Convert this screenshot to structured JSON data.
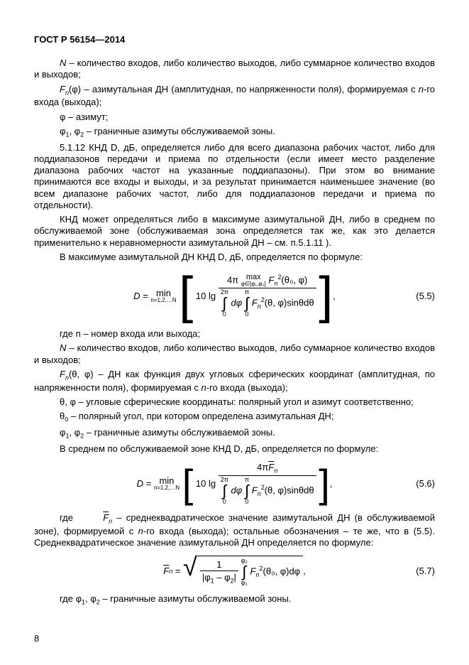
{
  "doc_header": "ГОСТ Р 56154—2014",
  "p1a": "N",
  "p1b": " – количество входов, либо количество выходов, либо суммарное количество входов и выходов;",
  "p2a": "F",
  "p2a_sub": "n",
  "p2a_arg": "(φ)",
  "p2b": " – азимутальная ДН (амплитудная, по напряженности поля), формируемая с  ",
  "p2c": "n",
  "p2d": "-го входа (выхода);",
  "p3a": "φ  – азимут;",
  "p4a": "φ",
  "p4a1": "1",
  "p4b": ", φ",
  "p4b1": "2",
  "p4c": "  – граничные азимуты обслуживаемой зоны.",
  "p5": "5.1.12 КНД  D, дБ,  определяется либо для всего диапазона рабочих частот, либо для поддиапазонов передачи и приема по отдельности (если имеет место разделение диапазона рабочих частот на указанные поддиапазоны). При этом во внимание принимаются все входы и выходы, и за результат принимается наименьшее значение (во всем диапазоне рабочих частот, либо для поддиапазонов передачи и приема по отдельности).",
  "p6": "КНД может определяться либо в максимуме азимутальной ДН, либо в среднем по обслуживаемой зоне (обслуживаемая зона определяется так же, как это делается применительно к неравномерности азимутальной ДН – см. п.5.1.11 ).",
  "p7": "В максимуме азимутальной ДН  КНД  D, дБ,  определяется по формуле:",
  "eq55_num": "(5.5)",
  "eq55": {
    "D_eq": "D = ",
    "min": "min",
    "min_sub": "n=1,2,…N",
    "tenlg": "10 lg",
    "num_4pi": "4π ",
    "max": "max",
    "max_sub": "φ∈[φ₁,φ₂]",
    "F2": "F",
    "F2sub": "n",
    "F2sup": "2",
    "args_top": "(θ₀, φ)",
    "int1_top": "2π",
    "int1_bot": "0",
    "dphi": "dφ",
    "int2_top": "π",
    "int2_bot": "0",
    "args_bot": "(θ, φ)sinθdθ"
  },
  "p8a": "где  n  – номер входа или выхода;",
  "p9a": "N",
  "p9b": "  – количество входов, либо количество выходов, либо суммарное количество входов и выходов;",
  "p10a": "F",
  "p10sub": "n",
  "p10arg": "(θ, φ)",
  "p10b": "  – ДН как функция двух угловых сферических координат (амплитудная, по напряженности поля), формируемая с  ",
  "p10c": "n",
  "p10d": "-го входа (выхода);",
  "p11": "θ,  φ  – угловые сферические координаты: полярный угол и азимут соответственно;",
  "p12a": "θ",
  "p12sub": "0",
  "p12b": "  – полярный угол, при котором определена азимутальная ДН;",
  "p13a": "φ",
  "p13a1": "1",
  "p13b": ", φ",
  "p13b1": "2",
  "p13c": " – граничные азимуты обслуживаемой зоны.",
  "p14": "В среднем по обслуживаемой зоне КНД  D, дБ,  определяется по формуле:",
  "eq56_num": "(5.6)",
  "eq56": {
    "num_top": "4π",
    "Fbar": "F",
    "Fbar_sub": "n"
  },
  "p15a": "где  ",
  "p15b": "F",
  "p15sub": "n",
  "p15c": "  – среднеквадратическое значение азимутальной ДН (в обслуживаемой зоне), формируемой с  ",
  "p15d": "n",
  "p15e": "-го входа (выхода);  остальные обозначения – те же, что в (5.5). Среднеквадратическое значение азимутальной ДН определяется по формуле:",
  "eq57_num": "(5.7)",
  "eq57": {
    "Fbar": "F",
    "Fbar_sub": "n",
    "eq": " = ",
    "frac_num": "1",
    "frac_den_l": "|φ",
    "frac_den_1": "1",
    "frac_den_m": " – φ",
    "frac_den_2": "2",
    "frac_den_r": "|",
    "int_top": "φ₂",
    "int_bot": "φ₁",
    "F2": "F",
    "F2sub": "n",
    "F2sup": "2",
    "args": "(θ₀, φ)dφ",
    "comma": " ,"
  },
  "p16a": "где   φ",
  "p16a1": "1",
  "p16b": ", φ",
  "p16b1": "2",
  "p16c": "  – граничные азимуты обслуживаемой зоны.",
  "pagenum": "8"
}
